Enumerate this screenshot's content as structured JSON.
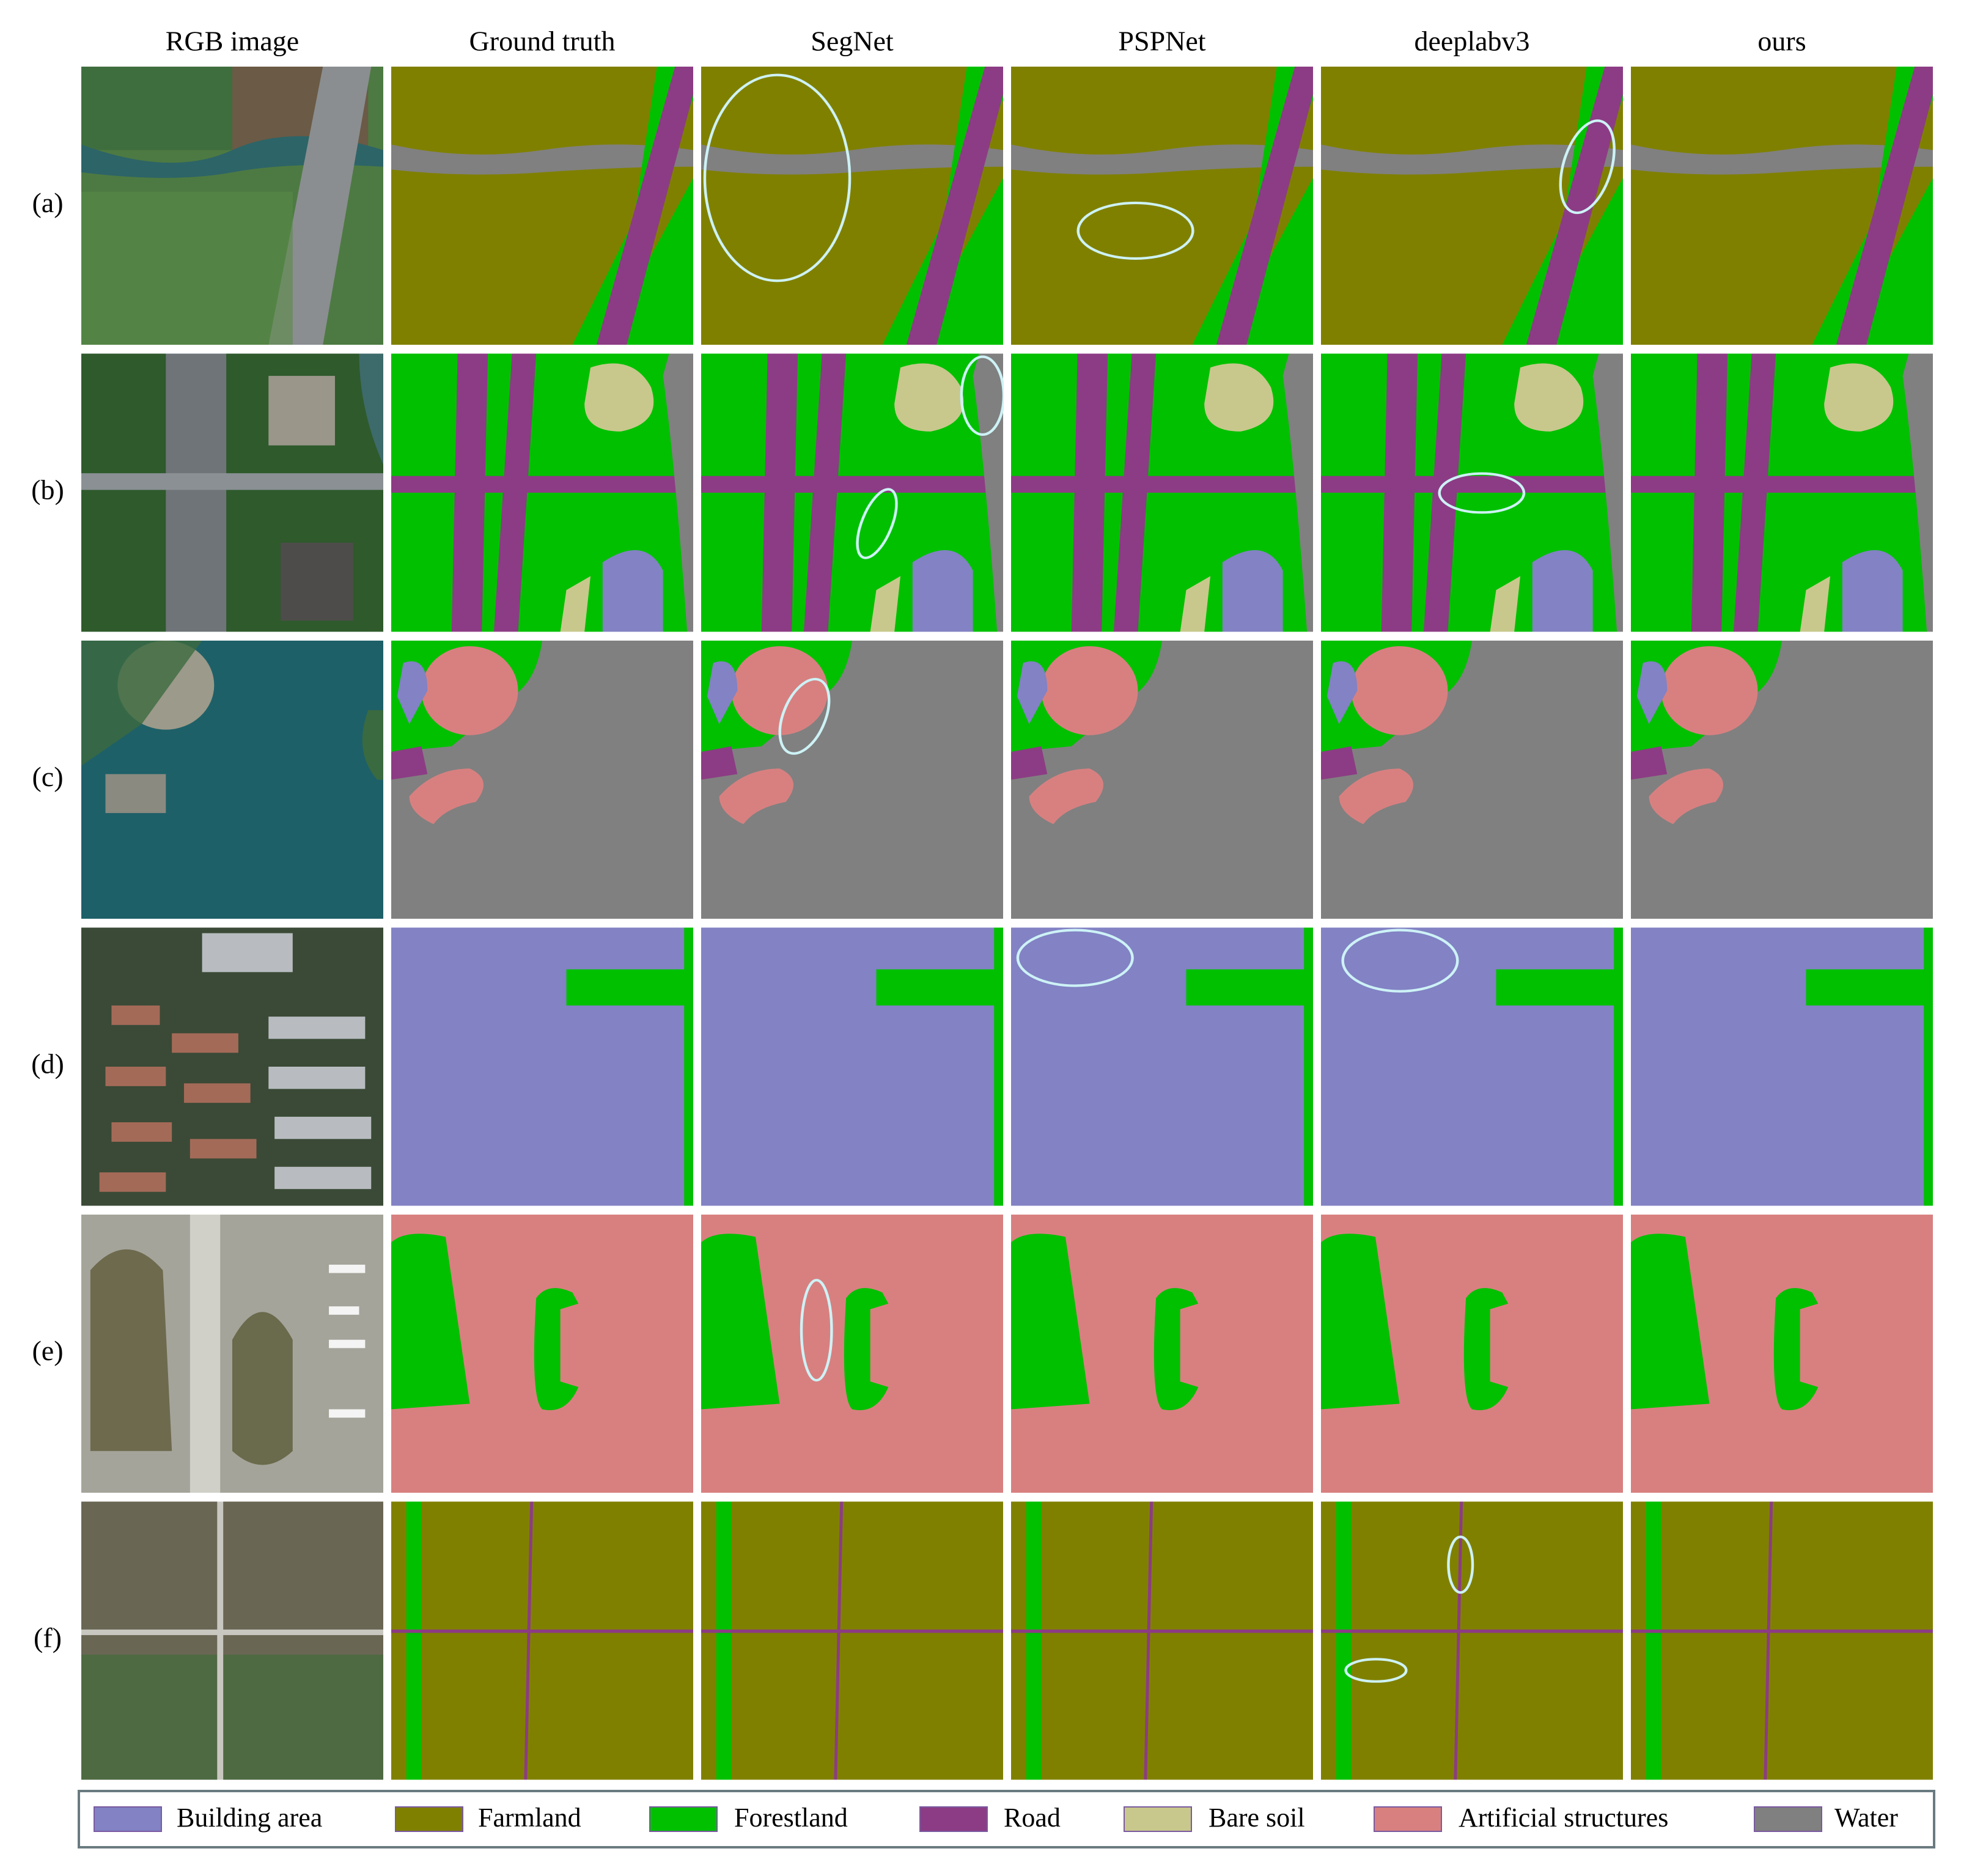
{
  "columns": [
    "RGB image",
    "Ground truth",
    "SegNet",
    "PSPNet",
    "deeplabv3",
    "ours"
  ],
  "rows": [
    "(a)",
    "(b)",
    "(c)",
    "(d)",
    "(e)",
    "(f)"
  ],
  "legend": [
    {
      "name": "Building area",
      "color": "#8282c4"
    },
    {
      "name": "Farmland",
      "color": "#808000"
    },
    {
      "name": "Forestland",
      "color": "#00c000"
    },
    {
      "name": "Road",
      "color": "#8c3c84"
    },
    {
      "name": "Bare soil",
      "color": "#c8c88c"
    },
    {
      "name": "Artificial structures",
      "color": "#d88080"
    },
    {
      "name": "Water",
      "color": "#808080"
    }
  ]
}
